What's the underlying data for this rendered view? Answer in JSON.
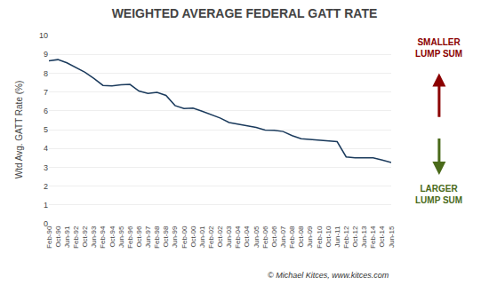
{
  "chart_data": {
    "type": "line",
    "title": "WEIGHTED AVERAGE FEDERAL GATT RATE",
    "ylabel": "Wtd Avg. GATT Rate (%)",
    "categories": [
      "Feb-90",
      "Oct-90",
      "Jun-91",
      "Feb-92",
      "Oct-92",
      "Jun-93",
      "Feb-94",
      "Oct-94",
      "Jun-95",
      "Feb-96",
      "Oct-96",
      "Jun-97",
      "Feb-98",
      "Oct-98",
      "Jun-99",
      "Feb-00",
      "Oct-00",
      "Jun-01",
      "Feb-02",
      "Oct-02",
      "Jun-03",
      "Feb-04",
      "Oct-04",
      "Jun-05",
      "Feb-06",
      "Oct-06",
      "Jun-07",
      "Feb-08",
      "Oct-08",
      "Jun-09",
      "Feb-10",
      "Oct-10",
      "Jun-11",
      "Feb-12",
      "Oct-12",
      "Jun-13",
      "Feb-14",
      "Oct-14",
      "Jun-15"
    ],
    "values": [
      8.65,
      8.72,
      8.55,
      8.3,
      8.05,
      7.72,
      7.35,
      7.32,
      7.38,
      7.4,
      7.05,
      6.92,
      6.98,
      6.82,
      6.28,
      6.12,
      6.14,
      5.98,
      5.8,
      5.62,
      5.38,
      5.3,
      5.2,
      5.12,
      4.98,
      4.96,
      4.9,
      4.68,
      4.52,
      4.48,
      4.45,
      4.38,
      4.36,
      3.55,
      3.5,
      3.5,
      3.5,
      3.38,
      3.25
    ],
    "color": "#1a3a5c",
    "ylim": [
      0,
      10
    ],
    "yticks": [
      0,
      1,
      2,
      3,
      4,
      5,
      6,
      7,
      8,
      9,
      10
    ],
    "grid": true,
    "annotations": [
      {
        "text": "SMALLER\nLUMP SUM",
        "color": "#8b0000"
      },
      {
        "text": "LARGER\nLUMP SUM",
        "color": "#4a6a1a"
      },
      {
        "text": "© Michael Kitces, www.kitces.com"
      }
    ]
  }
}
